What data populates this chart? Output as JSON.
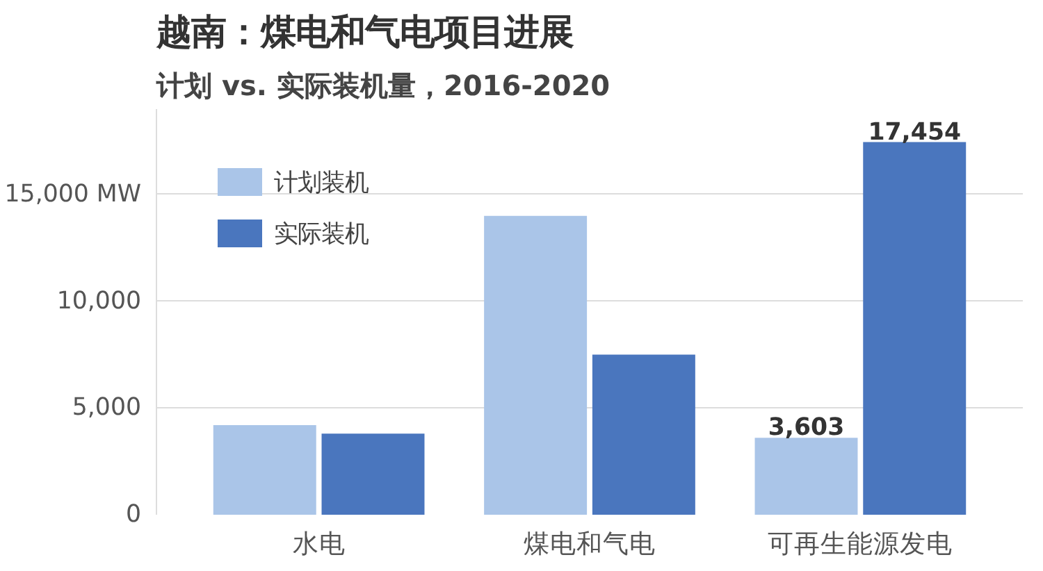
{
  "chart_data": {
    "type": "bar",
    "title": "越南：煤电和气电项目进展",
    "subtitle": "计划 vs. 实际装机量，2016-2020",
    "categories": [
      "水电",
      "煤电和气电",
      "可再生能源发电"
    ],
    "series": [
      {
        "name": "计划装机",
        "color": "#aac5e8",
        "values": [
          4200,
          14000,
          3603
        ],
        "value_labels": [
          null,
          null,
          "3,603"
        ]
      },
      {
        "name": "实际装机",
        "color": "#4a76be",
        "values": [
          3800,
          7500,
          17454
        ],
        "value_labels": [
          null,
          null,
          "17,454"
        ]
      }
    ],
    "ylim": [
      0,
      19000
    ],
    "yticks": [
      0,
      {
        "value": 5000,
        "label": "5,000"
      },
      {
        "value": 10000,
        "label": "10,000"
      },
      {
        "value": 15000,
        "label": "15,000 MW"
      }
    ],
    "grid": "y",
    "legend": "top left"
  }
}
